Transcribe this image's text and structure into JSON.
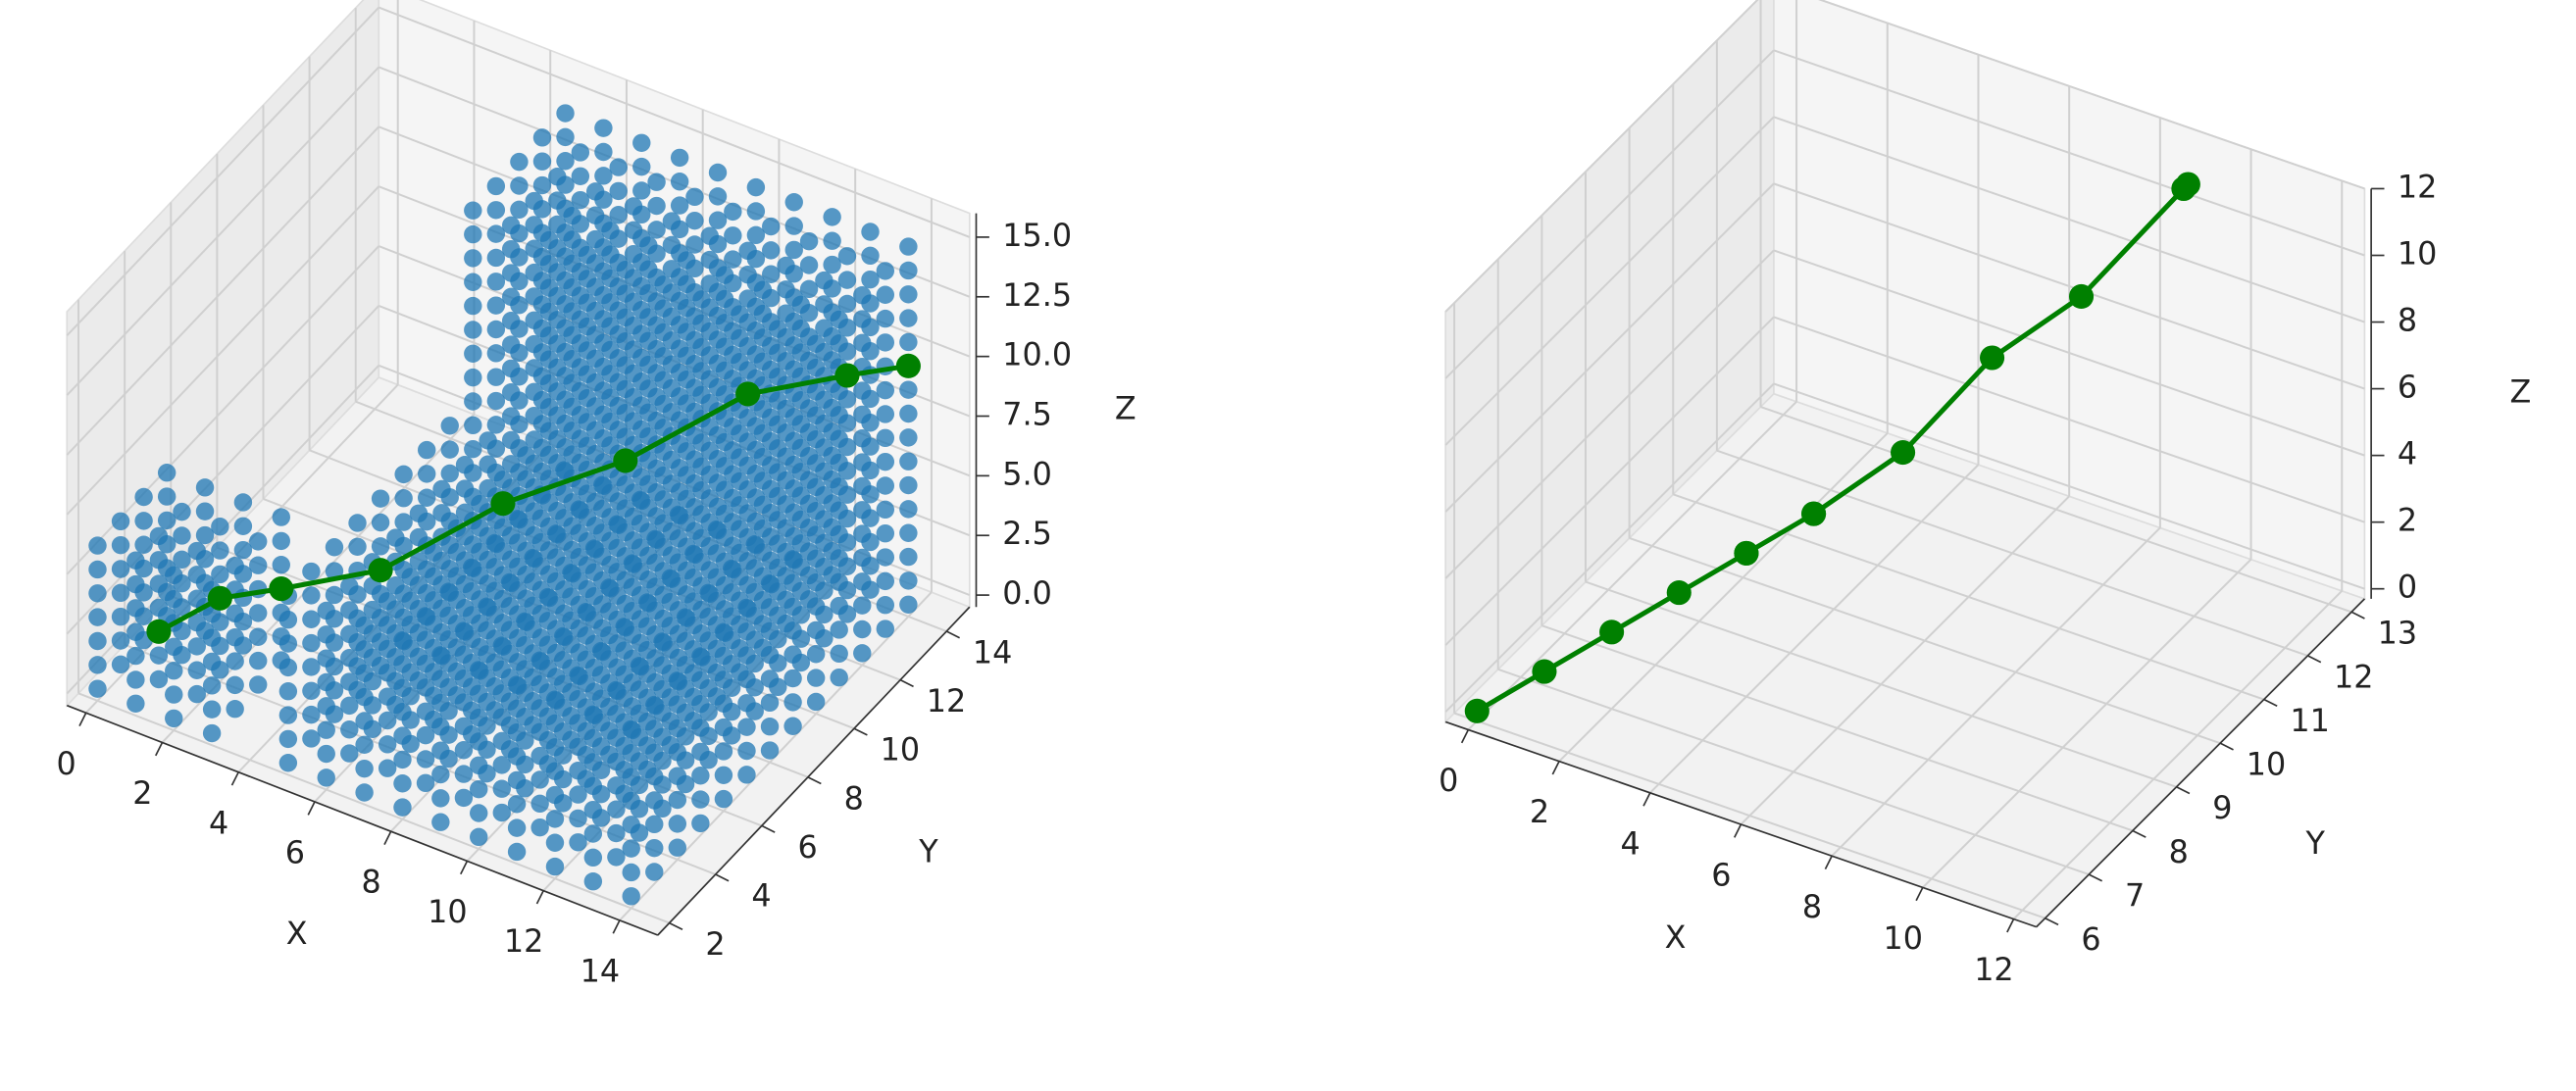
{
  "chart_data": [
    {
      "type": "scatter3d",
      "xlabel": "X",
      "ylabel": "Y",
      "zlabel": "Z",
      "xlim": [
        -0.5,
        15
      ],
      "ylim": [
        1.5,
        15
      ],
      "zlim": [
        -0.5,
        16
      ],
      "xticks": [
        0,
        2,
        4,
        6,
        8,
        10,
        12,
        14
      ],
      "yticks": [
        2,
        4,
        6,
        8,
        10,
        12,
        14
      ],
      "zticks": [
        {
          "value": 0,
          "label": "0.0"
        },
        {
          "value": 2.5,
          "label": "2.5"
        },
        {
          "value": 5,
          "label": "5.0"
        },
        {
          "value": 7.5,
          "label": "7.5"
        },
        {
          "value": 10,
          "label": "10.0"
        },
        {
          "value": 12.5,
          "label": "12.5"
        },
        {
          "value": 15,
          "label": "15.0"
        }
      ],
      "grid": true,
      "voxel_color": "#1f77b4",
      "voxels": [
        {
          "x": [
            0,
            3
          ],
          "y": [
            2,
            5
          ],
          "z": [
            0,
            6
          ]
        },
        {
          "x": [
            5,
            14
          ],
          "y": [
            2,
            9
          ],
          "z": [
            0,
            7
          ]
        },
        {
          "x": [
            5,
            14
          ],
          "y": [
            10,
            14
          ],
          "z": [
            0,
            15
          ]
        }
      ],
      "series": [
        {
          "color": "green",
          "x": [
            1,
            2,
            3,
            5,
            7,
            9,
            11,
            13,
            14
          ],
          "y": [
            3,
            4,
            5,
            6,
            8,
            10,
            12,
            13,
            14
          ],
          "z": [
            2,
            3,
            3,
            4,
            6,
            7,
            9,
            10,
            10
          ]
        }
      ]
    },
    {
      "type": "line3d",
      "xlabel": "X",
      "ylabel": "Y",
      "zlabel": "Z",
      "xlim": [
        -0.5,
        12.5
      ],
      "ylim": [
        5.8,
        13.3
      ],
      "zlim": [
        -0.3,
        12
      ],
      "xticks": [
        0,
        2,
        4,
        6,
        8,
        10,
        12
      ],
      "yticks": [
        6,
        7,
        8,
        9,
        10,
        11,
        12,
        13
      ],
      "zticks": [
        0,
        2,
        4,
        6,
        8,
        10,
        12
      ],
      "grid": true,
      "series": [
        {
          "color": "green",
          "x": [
            0,
            1,
            2,
            3,
            4,
            4,
            5,
            5,
            6,
            7,
            8,
            9,
            9
          ],
          "y": [
            6,
            6.5,
            7,
            7.5,
            8,
            8,
            8.5,
            8.5,
            9.5,
            10.5,
            11.5,
            12.8,
            12.9
          ],
          "z": [
            0,
            1,
            2,
            3,
            4,
            4,
            5,
            5,
            6,
            8,
            9,
            11,
            11
          ]
        }
      ]
    }
  ]
}
